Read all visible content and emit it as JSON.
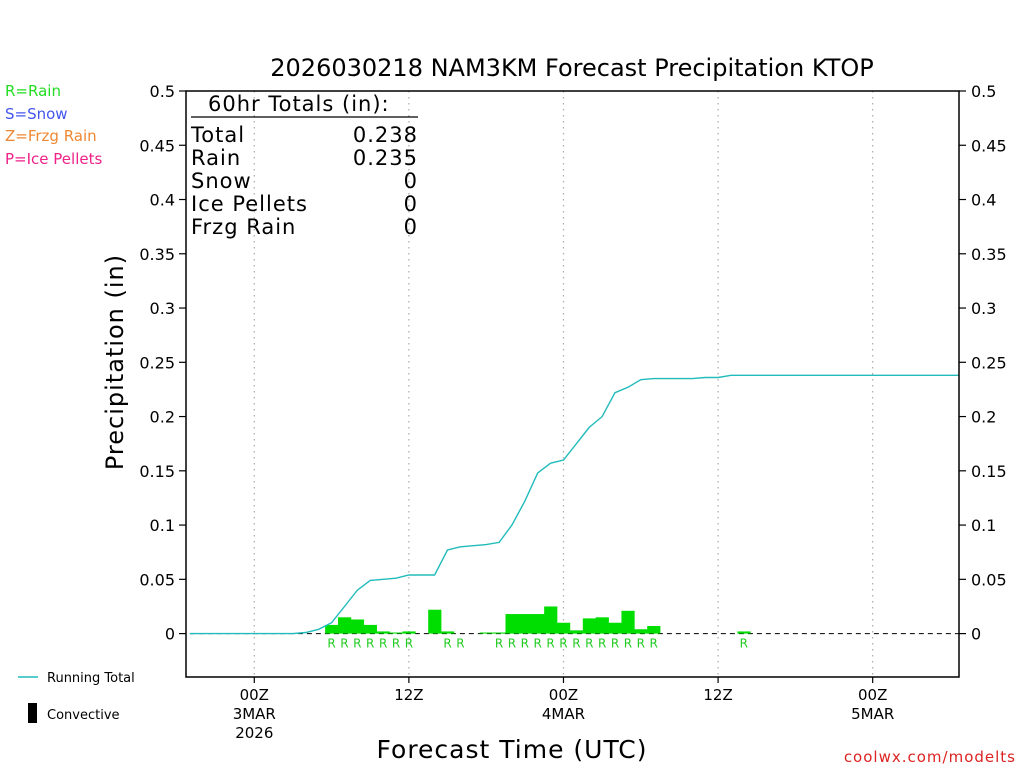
{
  "chart_data": {
    "type": "bar",
    "title": "2026030218 NAM3KM Forecast Precipitation KTOP",
    "xlabel": "Forecast Time (UTC)",
    "ylabel": "Precipitation (in)",
    "ylim": [
      -0.04,
      0.5
    ],
    "yticks": [
      0,
      0.05,
      0.1,
      0.15,
      0.2,
      0.25,
      0.3,
      0.35,
      0.4,
      0.45,
      0.5
    ],
    "ytick_labels": [
      "0",
      "0.05",
      "0.1",
      "0.15",
      "0.2",
      "0.25",
      "0.3",
      "0.35",
      "0.4",
      "0.45",
      "0.5"
    ],
    "x_hours_range": [
      -5.3,
      54.7
    ],
    "x_ticks": [
      {
        "hour": 0,
        "line1": "00Z",
        "line2": "3MAR",
        "line3": "2026"
      },
      {
        "hour": 12,
        "line1": "12Z",
        "line2": "",
        "line3": ""
      },
      {
        "hour": 24,
        "line1": "00Z",
        "line2": "4MAR",
        "line3": ""
      },
      {
        "hour": 36,
        "line1": "12Z",
        "line2": "",
        "line3": ""
      },
      {
        "hour": 48,
        "line1": "00Z",
        "line2": "5MAR",
        "line3": ""
      }
    ],
    "bar_hours": [
      6,
      7,
      8,
      9,
      10,
      11,
      12,
      13,
      14,
      15,
      16,
      17,
      18,
      19,
      20,
      21,
      22,
      23,
      24,
      25,
      26,
      27,
      28,
      29,
      30,
      31,
      32,
      33,
      34,
      35,
      36,
      37,
      38,
      39
    ],
    "bar_values": [
      0.008,
      0.015,
      0.013,
      0.008,
      0.002,
      0.001,
      0.002,
      0,
      0.022,
      0.002,
      0,
      0,
      0.001,
      0.001,
      0.018,
      0.018,
      0.018,
      0.025,
      0.01,
      0.003,
      0.014,
      0.015,
      0.01,
      0.021,
      0.004,
      0.007,
      0,
      0,
      0,
      0,
      0,
      0,
      0.002,
      0
    ],
    "ptype_hours": [
      6,
      7,
      8,
      9,
      10,
      11,
      12,
      15,
      16,
      19,
      20,
      21,
      22,
      23,
      24,
      25,
      26,
      27,
      28,
      29,
      30,
      31,
      38
    ],
    "ptype_letter": "R",
    "running_total": {
      "name": "Running Total",
      "hours": [
        -5,
        0,
        1,
        2,
        3,
        4,
        5,
        6,
        7,
        8,
        9,
        10,
        11,
        12,
        13,
        14,
        15,
        16,
        17,
        18,
        19,
        20,
        21,
        22,
        23,
        24,
        25,
        26,
        27,
        28,
        29,
        30,
        31,
        32,
        33,
        34,
        35,
        36,
        37,
        38,
        39,
        40,
        41,
        42,
        43,
        44,
        45,
        46,
        47,
        48,
        49,
        50,
        51,
        52,
        53,
        54,
        54.7
      ],
      "values": [
        0,
        0,
        0,
        0,
        0,
        0.001,
        0.004,
        0.01,
        0.025,
        0.04,
        0.049,
        0.05,
        0.051,
        0.054,
        0.054,
        0.054,
        0.077,
        0.08,
        0.081,
        0.082,
        0.084,
        0.1,
        0.122,
        0.148,
        0.157,
        0.16,
        0.175,
        0.19,
        0.2,
        0.222,
        0.227,
        0.234,
        0.235,
        0.235,
        0.235,
        0.235,
        0.236,
        0.236,
        0.238,
        0.238,
        0.238,
        0.238,
        0.238,
        0.238,
        0.238,
        0.238,
        0.238,
        0.238,
        0.238,
        0.238,
        0.238,
        0.238,
        0.238,
        0.238,
        0.238,
        0.238,
        0.238
      ]
    },
    "legend_ptypes": [
      {
        "label": "R=Rain",
        "color": "#22dd22"
      },
      {
        "label": "S=Snow",
        "color": "#4455ee"
      },
      {
        "label": "Z=Frzg Rain",
        "color": "#ee8833"
      },
      {
        "label": "P=Ice Pellets",
        "color": "#ee2288"
      }
    ],
    "legend_lines": [
      {
        "label": "Running Total",
        "color": "#22bbbb"
      },
      {
        "label": "Convective",
        "color": "#000000"
      }
    ],
    "totals_box": {
      "header": "60hr Totals (in):",
      "rows": [
        {
          "label": "Total",
          "value": "0.238"
        },
        {
          "label": "Rain",
          "value": "0.235"
        },
        {
          "label": "Snow",
          "value": "0"
        },
        {
          "label": "Ice Pellets",
          "value": "0"
        },
        {
          "label": "Frzg Rain",
          "value": "0"
        }
      ]
    },
    "colors": {
      "bar": "#00dd00",
      "line": "#22bbbb",
      "rain_letter": "#22cc22",
      "grid": "#aaaaaa",
      "credit": "#dd2222"
    }
  },
  "credit": "coolwx.com/modelts"
}
